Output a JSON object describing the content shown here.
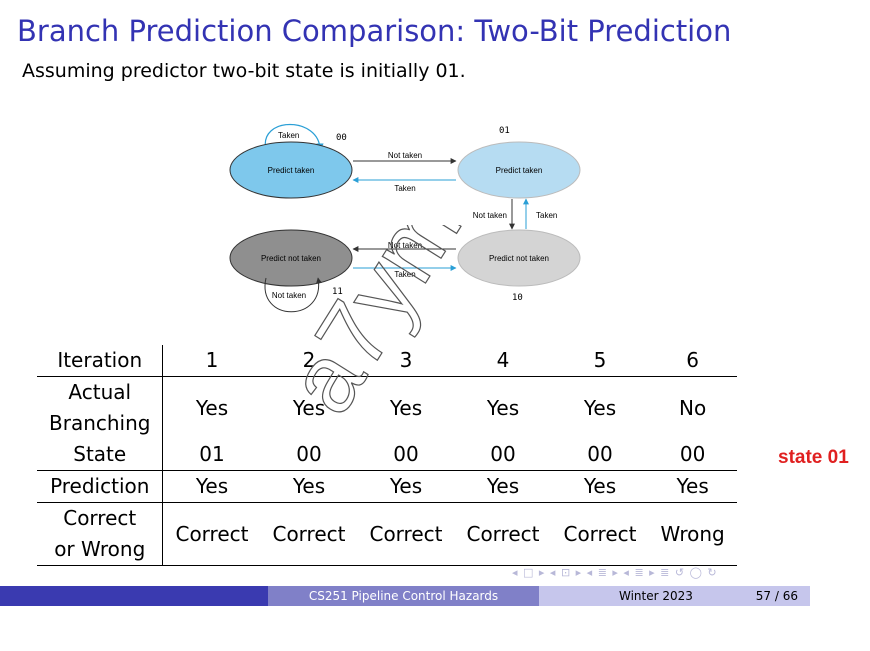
{
  "slide": {
    "title": "Branch Prediction Comparison: Two-Bit Prediction",
    "subtitle": "Assuming predictor two-bit state is initially 01."
  },
  "diagram": {
    "states": [
      {
        "code": "00",
        "label": "Predict taken"
      },
      {
        "code": "01",
        "label": "Predict taken"
      },
      {
        "code": "11",
        "label": "Predict not taken"
      },
      {
        "code": "10",
        "label": "Predict not taken"
      }
    ],
    "edges": {
      "self_00": "Taken",
      "e00_01": "Not taken",
      "e01_00": "Taken",
      "e01_10": "Not taken",
      "e10_01": "Taken",
      "e11_10": "Not taken",
      "e10_11": "Taken",
      "self_11": "Not taken"
    }
  },
  "table": {
    "row_headers": {
      "iteration": "Iteration",
      "actual_1": "Actual",
      "actual_2": "Branching",
      "state": "State",
      "prediction": "Prediction",
      "correct_1": "Correct",
      "correct_2": "or Wrong"
    },
    "iterations": [
      "1",
      "2",
      "3",
      "4",
      "5",
      "6"
    ],
    "actual": [
      "Yes",
      "Yes",
      "Yes",
      "Yes",
      "Yes",
      "No"
    ],
    "state": [
      "01",
      "00",
      "00",
      "00",
      "00",
      "00"
    ],
    "prediction": [
      "Yes",
      "Yes",
      "Yes",
      "Yes",
      "Yes",
      "Yes"
    ],
    "result": [
      "Correct",
      "Correct",
      "Correct",
      "Correct",
      "Correct",
      "Wrong"
    ]
  },
  "annotation": {
    "note": "state 01",
    "color": "#e02020"
  },
  "watermark": "a7ym",
  "nav": "◂ □ ▸ ◂ ⊡ ▸ ◂ ≣ ▸ ◂ ≣ ▸   ≣   ↺ ◯ ↻",
  "footer": {
    "course": "CS251 Pipeline Control Hazards",
    "date": "Winter 2023",
    "pages": "57 / 66"
  },
  "colors": {
    "title": "#3333b3",
    "footer_dark": "#3a3ab0",
    "footer_mid": "#8080c8",
    "footer_light": "#c6c6ec",
    "state_00": "#7ec8ec",
    "state_01": "#b6dcf2",
    "state_11": "#8f8f8f",
    "state_10": "#d4d4d4"
  }
}
